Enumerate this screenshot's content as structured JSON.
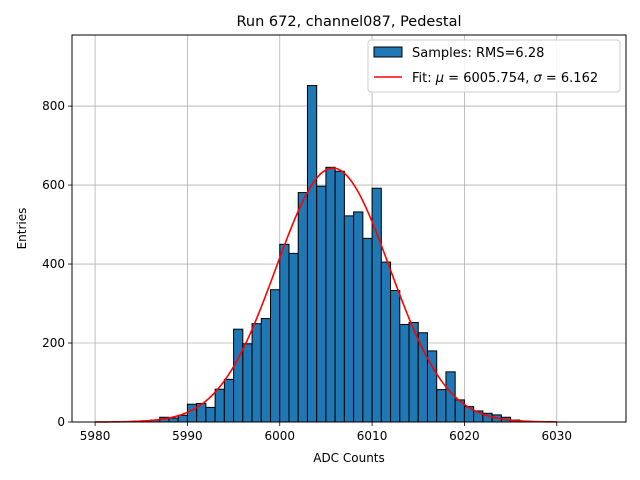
{
  "chart_data": {
    "type": "bar",
    "title": "Run 672, channel087, Pedestal",
    "xlabel": "ADC Counts",
    "ylabel": "Entries",
    "xlim": [
      5977.5,
      6037.5
    ],
    "ylim": [
      0,
      980
    ],
    "xticks": [
      5980,
      5990,
      6000,
      6010,
      6020,
      6030
    ],
    "yticks": [
      0,
      200,
      400,
      600,
      800
    ],
    "grid": true,
    "legend_position": "top-right",
    "bin_width": 1,
    "series": [
      {
        "name": "Samples: RMS=6.28",
        "kind": "histogram",
        "color": "#1f77b4",
        "bin_starts": [
          5983,
          5984,
          5985,
          5986,
          5987,
          5988,
          5989,
          5990,
          5991,
          5992,
          5993,
          5994,
          5995,
          5996,
          5997,
          5998,
          5999,
          6000,
          6001,
          6002,
          6003,
          6004,
          6005,
          6006,
          6007,
          6008,
          6009,
          6010,
          6011,
          6012,
          6013,
          6014,
          6015,
          6016,
          6017,
          6018,
          6019,
          6020,
          6021,
          6022,
          6023,
          6024,
          6025,
          6026,
          6027
        ],
        "values": [
          1,
          2,
          3,
          5,
          12,
          10,
          17,
          45,
          47,
          37,
          83,
          108,
          235,
          198,
          249,
          262,
          335,
          450,
          427,
          581,
          852,
          597,
          645,
          635,
          522,
          532,
          465,
          592,
          405,
          333,
          247,
          252,
          226,
          180,
          82,
          127,
          56,
          39,
          28,
          22,
          18,
          12,
          5,
          2,
          1
        ]
      },
      {
        "name_prefix": "Fit: ",
        "name_mu_symbol": "μ",
        "name_mu_text": " = 6005.754, ",
        "name_sigma_symbol": "σ",
        "name_sigma_text": " = 6.162",
        "kind": "gaussian_fit",
        "color": "#ff0000",
        "mu": 6005.754,
        "sigma": 6.162,
        "amplitude": 643,
        "x_range": [
          5980,
          6030
        ]
      }
    ]
  }
}
